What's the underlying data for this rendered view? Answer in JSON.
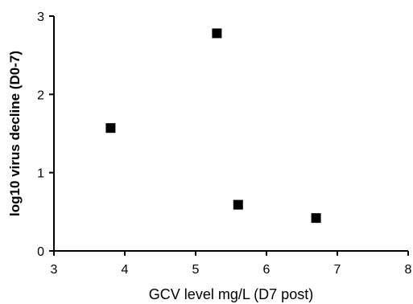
{
  "chart_data": {
    "type": "scatter",
    "title": "",
    "xlabel": "GCV level mg/L (D7 post)",
    "ylabel": "log10 virus decline (D0-7)",
    "xlim": [
      3,
      8
    ],
    "ylim": [
      0,
      3
    ],
    "xticks": [
      3,
      4,
      5,
      6,
      7,
      8
    ],
    "yticks": [
      0,
      1,
      2,
      3
    ],
    "grid": false,
    "legend": "none",
    "marker": "square",
    "colors": {
      "axis": "#000000",
      "points": "#000000",
      "background": "#ffffff"
    },
    "series": [
      {
        "points": [
          {
            "x": 3.8,
            "y": 1.57
          },
          {
            "x": 5.3,
            "y": 2.78
          },
          {
            "x": 5.6,
            "y": 0.59
          },
          {
            "x": 6.7,
            "y": 0.42
          }
        ]
      }
    ]
  }
}
